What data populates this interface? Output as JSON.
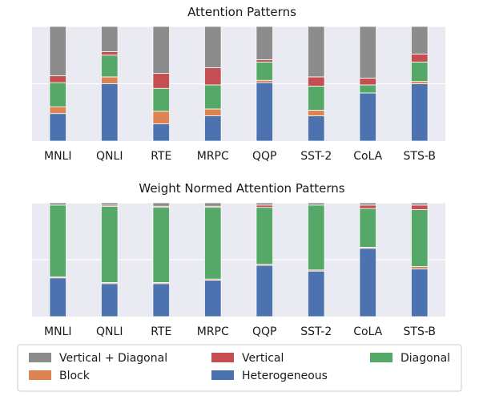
{
  "chart_data": [
    {
      "type": "bar",
      "stacked": true,
      "title": "Attention Patterns",
      "categories": [
        "MNLI",
        "QNLI",
        "RTE",
        "MRPC",
        "QQP",
        "SST-2",
        "CoLA",
        "STS-B"
      ],
      "ylim": [
        0,
        1
      ],
      "grid": true,
      "series": [
        {
          "name": "Heterogeneous",
          "values": [
            0.24,
            0.5,
            0.15,
            0.22,
            0.51,
            0.22,
            0.42,
            0.5
          ]
        },
        {
          "name": "Block",
          "values": [
            0.06,
            0.06,
            0.11,
            0.06,
            0.02,
            0.05,
            0.0,
            0.02
          ]
        },
        {
          "name": "Diagonal",
          "values": [
            0.21,
            0.19,
            0.2,
            0.21,
            0.16,
            0.21,
            0.07,
            0.17
          ]
        },
        {
          "name": "Vertical",
          "values": [
            0.06,
            0.03,
            0.13,
            0.15,
            0.02,
            0.08,
            0.06,
            0.07
          ]
        },
        {
          "name": "Vertical + Diagonal",
          "values": [
            0.43,
            0.22,
            0.41,
            0.36,
            0.29,
            0.44,
            0.45,
            0.24
          ]
        }
      ]
    },
    {
      "type": "bar",
      "stacked": true,
      "title": "Weight Normed Attention Patterns",
      "categories": [
        "MNLI",
        "QNLI",
        "RTE",
        "MRPC",
        "QQP",
        "SST-2",
        "CoLA",
        "STS-B"
      ],
      "ylim": [
        0,
        1
      ],
      "grid": true,
      "series": [
        {
          "name": "Heterogeneous",
          "values": [
            0.34,
            0.29,
            0.29,
            0.32,
            0.45,
            0.4,
            0.6,
            0.42
          ]
        },
        {
          "name": "Block",
          "values": [
            0.01,
            0.01,
            0.01,
            0.01,
            0.01,
            0.01,
            0.01,
            0.02
          ]
        },
        {
          "name": "Diagonal",
          "values": [
            0.63,
            0.67,
            0.66,
            0.63,
            0.5,
            0.57,
            0.34,
            0.5
          ]
        },
        {
          "name": "Vertical",
          "values": [
            0.0,
            0.01,
            0.01,
            0.01,
            0.02,
            0.0,
            0.03,
            0.04
          ]
        },
        {
          "name": "Vertical + Diagonal",
          "values": [
            0.02,
            0.02,
            0.03,
            0.03,
            0.02,
            0.02,
            0.02,
            0.02
          ]
        }
      ]
    }
  ],
  "colors": {
    "Heterogeneous": "#4c72b0",
    "Block": "#dd8452",
    "Diagonal": "#55a868",
    "Vertical": "#c44e52",
    "Vertical + Diagonal": "#8c8c8c",
    "background": "#eaeaf2",
    "grid": "#ffffff"
  },
  "legend": {
    "placement": "bottom",
    "entries": [
      "Vertical + Diagonal",
      "Vertical",
      "Diagonal",
      "Block",
      "Heterogeneous"
    ]
  }
}
